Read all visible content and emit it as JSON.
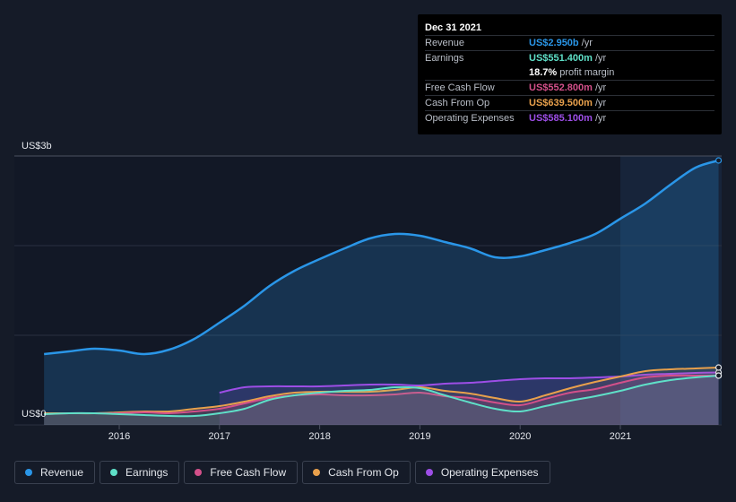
{
  "chart_data": {
    "type": "area",
    "title": "",
    "x_ticks": [
      "2016",
      "2017",
      "2018",
      "2019",
      "2020",
      "2021"
    ],
    "y_labels": {
      "top": "US$3b",
      "bottom": "US$0"
    },
    "ylim": [
      0,
      3.0
    ],
    "xlim": [
      2015.0,
      2021.98
    ],
    "highlight_start": 2021.0,
    "series": [
      {
        "name": "Revenue",
        "color": "#2a96e8",
        "points": [
          [
            2015.25,
            0.79
          ],
          [
            2015.5,
            0.82
          ],
          [
            2015.75,
            0.85
          ],
          [
            2016.0,
            0.83
          ],
          [
            2016.25,
            0.79
          ],
          [
            2016.5,
            0.84
          ],
          [
            2016.75,
            0.96
          ],
          [
            2017.0,
            1.14
          ],
          [
            2017.25,
            1.33
          ],
          [
            2017.5,
            1.55
          ],
          [
            2017.75,
            1.72
          ],
          [
            2018.0,
            1.85
          ],
          [
            2018.25,
            1.97
          ],
          [
            2018.5,
            2.08
          ],
          [
            2018.75,
            2.13
          ],
          [
            2019.0,
            2.11
          ],
          [
            2019.25,
            2.04
          ],
          [
            2019.5,
            1.97
          ],
          [
            2019.75,
            1.87
          ],
          [
            2020.0,
            1.88
          ],
          [
            2020.25,
            1.95
          ],
          [
            2020.5,
            2.03
          ],
          [
            2020.75,
            2.13
          ],
          [
            2021.0,
            2.3
          ],
          [
            2021.25,
            2.47
          ],
          [
            2021.5,
            2.68
          ],
          [
            2021.75,
            2.87
          ],
          [
            2021.98,
            2.95
          ]
        ]
      },
      {
        "name": "Earnings",
        "color": "#5fe0c8",
        "points": [
          [
            2015.25,
            0.12
          ],
          [
            2015.5,
            0.13
          ],
          [
            2015.75,
            0.13
          ],
          [
            2016.0,
            0.12
          ],
          [
            2016.25,
            0.11
          ],
          [
            2016.5,
            0.1
          ],
          [
            2016.75,
            0.1
          ],
          [
            2017.0,
            0.13
          ],
          [
            2017.25,
            0.18
          ],
          [
            2017.5,
            0.28
          ],
          [
            2017.75,
            0.33
          ],
          [
            2018.0,
            0.36
          ],
          [
            2018.25,
            0.38
          ],
          [
            2018.5,
            0.39
          ],
          [
            2018.75,
            0.42
          ],
          [
            2019.0,
            0.41
          ],
          [
            2019.25,
            0.33
          ],
          [
            2019.5,
            0.25
          ],
          [
            2019.75,
            0.18
          ],
          [
            2020.0,
            0.15
          ],
          [
            2020.25,
            0.21
          ],
          [
            2020.5,
            0.27
          ],
          [
            2020.75,
            0.32
          ],
          [
            2021.0,
            0.38
          ],
          [
            2021.25,
            0.45
          ],
          [
            2021.5,
            0.5
          ],
          [
            2021.75,
            0.53
          ],
          [
            2021.98,
            0.55
          ]
        ]
      },
      {
        "name": "Free Cash Flow",
        "color": "#d3508a",
        "points": [
          [
            2015.25,
            0.12
          ],
          [
            2015.5,
            0.13
          ],
          [
            2015.75,
            0.13
          ],
          [
            2016.0,
            0.13
          ],
          [
            2016.25,
            0.14
          ],
          [
            2016.5,
            0.13
          ],
          [
            2016.75,
            0.15
          ],
          [
            2017.0,
            0.18
          ],
          [
            2017.25,
            0.24
          ],
          [
            2017.5,
            0.3
          ],
          [
            2017.75,
            0.33
          ],
          [
            2018.0,
            0.34
          ],
          [
            2018.25,
            0.33
          ],
          [
            2018.5,
            0.33
          ],
          [
            2018.75,
            0.34
          ],
          [
            2019.0,
            0.36
          ],
          [
            2019.25,
            0.32
          ],
          [
            2019.5,
            0.3
          ],
          [
            2019.75,
            0.25
          ],
          [
            2020.0,
            0.22
          ],
          [
            2020.25,
            0.29
          ],
          [
            2020.5,
            0.36
          ],
          [
            2020.75,
            0.4
          ],
          [
            2021.0,
            0.47
          ],
          [
            2021.25,
            0.53
          ],
          [
            2021.5,
            0.55
          ],
          [
            2021.75,
            0.55
          ],
          [
            2021.98,
            0.55
          ]
        ]
      },
      {
        "name": "Cash From Op",
        "color": "#e8a04c",
        "points": [
          [
            2015.25,
            0.13
          ],
          [
            2015.5,
            0.13
          ],
          [
            2015.75,
            0.13
          ],
          [
            2016.0,
            0.14
          ],
          [
            2016.25,
            0.15
          ],
          [
            2016.5,
            0.15
          ],
          [
            2016.75,
            0.18
          ],
          [
            2017.0,
            0.21
          ],
          [
            2017.25,
            0.26
          ],
          [
            2017.5,
            0.32
          ],
          [
            2017.75,
            0.36
          ],
          [
            2018.0,
            0.37
          ],
          [
            2018.25,
            0.37
          ],
          [
            2018.5,
            0.37
          ],
          [
            2018.75,
            0.39
          ],
          [
            2019.0,
            0.42
          ],
          [
            2019.25,
            0.38
          ],
          [
            2019.5,
            0.35
          ],
          [
            2019.75,
            0.3
          ],
          [
            2020.0,
            0.26
          ],
          [
            2020.25,
            0.33
          ],
          [
            2020.5,
            0.41
          ],
          [
            2020.75,
            0.48
          ],
          [
            2021.0,
            0.54
          ],
          [
            2021.25,
            0.6
          ],
          [
            2021.5,
            0.62
          ],
          [
            2021.75,
            0.63
          ],
          [
            2021.98,
            0.64
          ]
        ]
      },
      {
        "name": "Operating Expenses",
        "color": "#9d4ee6",
        "points": [
          [
            2017.0,
            0.36
          ],
          [
            2017.25,
            0.42
          ],
          [
            2017.5,
            0.43
          ],
          [
            2017.75,
            0.43
          ],
          [
            2018.0,
            0.43
          ],
          [
            2018.25,
            0.44
          ],
          [
            2018.5,
            0.45
          ],
          [
            2018.75,
            0.45
          ],
          [
            2019.0,
            0.44
          ],
          [
            2019.25,
            0.46
          ],
          [
            2019.5,
            0.47
          ],
          [
            2019.75,
            0.49
          ],
          [
            2020.0,
            0.51
          ],
          [
            2020.25,
            0.52
          ],
          [
            2020.5,
            0.52
          ],
          [
            2020.75,
            0.53
          ],
          [
            2021.0,
            0.54
          ],
          [
            2021.25,
            0.56
          ],
          [
            2021.5,
            0.57
          ],
          [
            2021.75,
            0.58
          ],
          [
            2021.98,
            0.585
          ]
        ]
      }
    ]
  },
  "tooltip": {
    "date": "Dec 31 2021",
    "rows": [
      {
        "label": "Revenue",
        "value": "US$2.950b",
        "unit": "/yr",
        "color": "#2a96e8"
      },
      {
        "label": "Earnings",
        "value": "US$551.400m",
        "unit": "/yr",
        "color": "#5fe0c8"
      },
      {
        "label": "",
        "value": "18.7%",
        "unit": "profit margin",
        "color": "#ffffff"
      },
      {
        "label": "Free Cash Flow",
        "value": "US$552.800m",
        "unit": "/yr",
        "color": "#d3508a"
      },
      {
        "label": "Cash From Op",
        "value": "US$639.500m",
        "unit": "/yr",
        "color": "#e8a04c"
      },
      {
        "label": "Operating Expenses",
        "value": "US$585.100m",
        "unit": "/yr",
        "color": "#9d4ee6"
      }
    ]
  },
  "legend": [
    {
      "label": "Revenue",
      "color": "#2a96e8"
    },
    {
      "label": "Earnings",
      "color": "#5fe0c8"
    },
    {
      "label": "Free Cash Flow",
      "color": "#d3508a"
    },
    {
      "label": "Cash From Op",
      "color": "#e8a04c"
    },
    {
      "label": "Operating Expenses",
      "color": "#9d4ee6"
    }
  ]
}
